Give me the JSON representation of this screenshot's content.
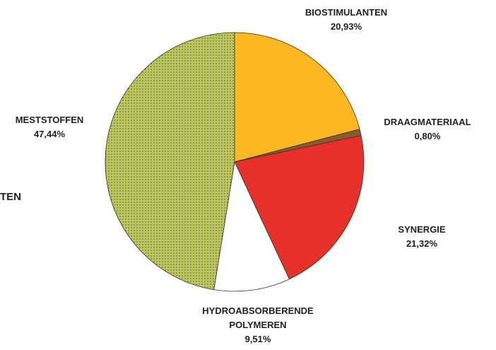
{
  "chart_data": {
    "type": "pie",
    "categories": [
      "BIOSTIMULANTEN",
      "DRAAGMATERIAAL",
      "SYNERGIE",
      "HYDROABSORBERENDE POLYMEREN",
      "MESTSTOFFEN"
    ],
    "values": [
      20.93,
      0.8,
      21.32,
      9.51,
      47.44
    ],
    "value_labels": [
      "20,93%",
      "0,80%",
      "21,32%",
      "9,51%",
      "47,44%"
    ],
    "colors": [
      "#fbb821",
      "#8b5a2b",
      "#e8302a",
      "#ffffff",
      "#c3c84a"
    ]
  },
  "side_text": "TEN"
}
